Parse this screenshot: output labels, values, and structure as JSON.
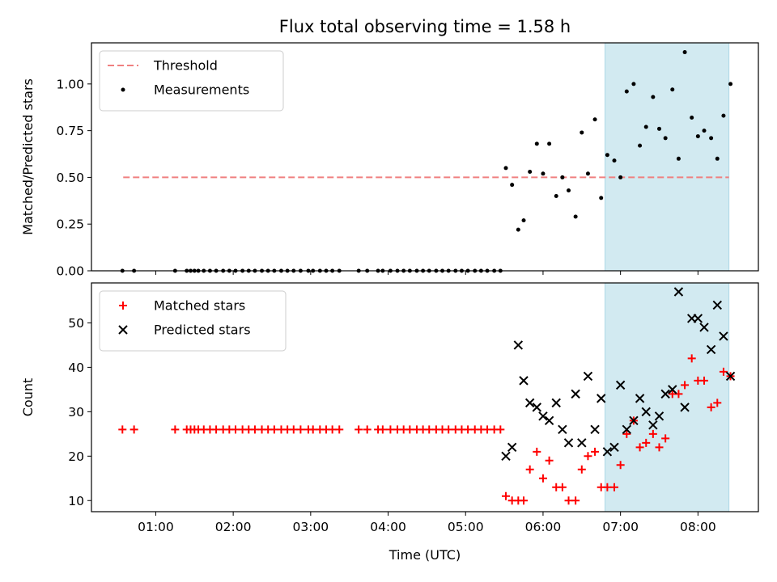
{
  "chart_data": {
    "title": "Flux total observing time = 1.58 h",
    "xlabel": "Time (UTC)",
    "x_ticks": [
      "01:00",
      "02:00",
      "03:00",
      "04:00",
      "05:00",
      "06:00",
      "07:00",
      "08:00"
    ],
    "x_tick_hours": [
      1,
      2,
      3,
      4,
      5,
      6,
      7,
      8
    ],
    "x_range_hours": [
      0.17,
      8.78
    ],
    "shaded_region_hours": [
      6.8,
      8.4
    ],
    "shade_color": "#add8e6",
    "panels": [
      {
        "type": "scatter",
        "ylabel": "Matched/Predicted stars",
        "ylim": [
          0,
          1.22
        ],
        "y_ticks": [
          0.0,
          0.25,
          0.5,
          0.75,
          1.0
        ],
        "y_tick_labels": [
          "0.00",
          "0.25",
          "0.50",
          "0.75",
          "1.00"
        ],
        "legend_position": "top-left",
        "threshold": {
          "name": "Threshold",
          "value": 0.5,
          "x_range_hours": [
            0.58,
            8.4
          ],
          "color": "#f08080"
        },
        "series": [
          {
            "name": "Measurements",
            "color": "#000000",
            "marker": "dot",
            "points": [
              [
                0.57,
                0
              ],
              [
                0.72,
                0
              ],
              [
                1.25,
                0
              ],
              [
                1.4,
                0
              ],
              [
                1.45,
                0
              ],
              [
                1.5,
                0
              ],
              [
                1.55,
                0
              ],
              [
                1.62,
                0
              ],
              [
                1.7,
                0
              ],
              [
                1.78,
                0
              ],
              [
                1.87,
                0
              ],
              [
                1.95,
                0
              ],
              [
                2.03,
                0
              ],
              [
                2.12,
                0
              ],
              [
                2.2,
                0
              ],
              [
                2.28,
                0
              ],
              [
                2.37,
                0
              ],
              [
                2.45,
                0
              ],
              [
                2.53,
                0
              ],
              [
                2.62,
                0
              ],
              [
                2.7,
                0
              ],
              [
                2.78,
                0
              ],
              [
                2.87,
                0
              ],
              [
                2.97,
                0
              ],
              [
                3.03,
                0
              ],
              [
                3.12,
                0
              ],
              [
                3.2,
                0
              ],
              [
                3.28,
                0
              ],
              [
                3.37,
                0
              ],
              [
                3.62,
                0
              ],
              [
                3.73,
                0
              ],
              [
                3.87,
                0
              ],
              [
                3.93,
                0
              ],
              [
                4.03,
                0
              ],
              [
                4.12,
                0
              ],
              [
                4.2,
                0
              ],
              [
                4.28,
                0
              ],
              [
                4.37,
                0
              ],
              [
                4.45,
                0
              ],
              [
                4.53,
                0
              ],
              [
                4.62,
                0
              ],
              [
                4.7,
                0
              ],
              [
                4.78,
                0
              ],
              [
                4.87,
                0
              ],
              [
                4.95,
                0
              ],
              [
                5.03,
                0
              ],
              [
                5.12,
                0
              ],
              [
                5.2,
                0
              ],
              [
                5.28,
                0
              ],
              [
                5.37,
                0
              ],
              [
                5.45,
                0
              ],
              [
                5.52,
                0.55
              ],
              [
                5.6,
                0.46
              ],
              [
                5.68,
                0.22
              ],
              [
                5.75,
                0.27
              ],
              [
                5.83,
                0.53
              ],
              [
                5.92,
                0.68
              ],
              [
                6.0,
                0.52
              ],
              [
                6.08,
                0.68
              ],
              [
                6.17,
                0.4
              ],
              [
                6.25,
                0.5
              ],
              [
                6.33,
                0.43
              ],
              [
                6.42,
                0.29
              ],
              [
                6.5,
                0.74
              ],
              [
                6.58,
                0.52
              ],
              [
                6.67,
                0.81
              ],
              [
                6.75,
                0.39
              ],
              [
                6.83,
                0.62
              ],
              [
                6.92,
                0.59
              ],
              [
                7.0,
                0.5
              ],
              [
                7.08,
                0.96
              ],
              [
                7.17,
                1.0
              ],
              [
                7.25,
                0.67
              ],
              [
                7.33,
                0.77
              ],
              [
                7.42,
                0.93
              ],
              [
                7.5,
                0.76
              ],
              [
                7.58,
                0.71
              ],
              [
                7.67,
                0.97
              ],
              [
                7.75,
                0.6
              ],
              [
                7.83,
                1.17
              ],
              [
                7.92,
                0.82
              ],
              [
                8.0,
                0.72
              ],
              [
                8.08,
                0.75
              ],
              [
                8.17,
                0.71
              ],
              [
                8.25,
                0.6
              ],
              [
                8.33,
                0.83
              ],
              [
                8.42,
                1.0
              ]
            ]
          }
        ]
      },
      {
        "type": "scatter",
        "ylabel": "Count",
        "ylim": [
          7.5,
          59
        ],
        "y_ticks": [
          10,
          20,
          30,
          40,
          50
        ],
        "y_tick_labels": [
          "10",
          "20",
          "30",
          "40",
          "50"
        ],
        "legend_position": "top-left",
        "series": [
          {
            "name": "Matched stars",
            "color": "#ff0000",
            "marker": "plus",
            "points": [
              [
                0.57,
                26
              ],
              [
                0.72,
                26
              ],
              [
                1.25,
                26
              ],
              [
                1.4,
                26
              ],
              [
                1.45,
                26
              ],
              [
                1.5,
                26
              ],
              [
                1.55,
                26
              ],
              [
                1.62,
                26
              ],
              [
                1.7,
                26
              ],
              [
                1.78,
                26
              ],
              [
                1.87,
                26
              ],
              [
                1.95,
                26
              ],
              [
                2.03,
                26
              ],
              [
                2.12,
                26
              ],
              [
                2.2,
                26
              ],
              [
                2.28,
                26
              ],
              [
                2.37,
                26
              ],
              [
                2.45,
                26
              ],
              [
                2.53,
                26
              ],
              [
                2.62,
                26
              ],
              [
                2.7,
                26
              ],
              [
                2.78,
                26
              ],
              [
                2.87,
                26
              ],
              [
                2.97,
                26
              ],
              [
                3.03,
                26
              ],
              [
                3.12,
                26
              ],
              [
                3.2,
                26
              ],
              [
                3.28,
                26
              ],
              [
                3.37,
                26
              ],
              [
                3.62,
                26
              ],
              [
                3.73,
                26
              ],
              [
                3.87,
                26
              ],
              [
                3.93,
                26
              ],
              [
                4.03,
                26
              ],
              [
                4.12,
                26
              ],
              [
                4.2,
                26
              ],
              [
                4.28,
                26
              ],
              [
                4.37,
                26
              ],
              [
                4.45,
                26
              ],
              [
                4.53,
                26
              ],
              [
                4.62,
                26
              ],
              [
                4.7,
                26
              ],
              [
                4.78,
                26
              ],
              [
                4.87,
                26
              ],
              [
                4.95,
                26
              ],
              [
                5.03,
                26
              ],
              [
                5.12,
                26
              ],
              [
                5.2,
                26
              ],
              [
                5.28,
                26
              ],
              [
                5.37,
                26
              ],
              [
                5.45,
                26
              ],
              [
                5.52,
                11
              ],
              [
                5.6,
                10
              ],
              [
                5.68,
                10
              ],
              [
                5.75,
                10
              ],
              [
                5.83,
                17
              ],
              [
                5.92,
                21
              ],
              [
                6.0,
                15
              ],
              [
                6.08,
                19
              ],
              [
                6.17,
                13
              ],
              [
                6.25,
                13
              ],
              [
                6.33,
                10
              ],
              [
                6.42,
                10
              ],
              [
                6.5,
                17
              ],
              [
                6.58,
                20
              ],
              [
                6.67,
                21
              ],
              [
                6.75,
                13
              ],
              [
                6.83,
                13
              ],
              [
                6.92,
                13
              ],
              [
                7.0,
                18
              ],
              [
                7.08,
                25
              ],
              [
                7.17,
                28
              ],
              [
                7.25,
                22
              ],
              [
                7.33,
                23
              ],
              [
                7.42,
                25
              ],
              [
                7.5,
                22
              ],
              [
                7.58,
                24
              ],
              [
                7.67,
                34
              ],
              [
                7.75,
                34
              ],
              [
                7.83,
                36
              ],
              [
                7.92,
                42
              ],
              [
                8.0,
                37
              ],
              [
                8.08,
                37
              ],
              [
                8.17,
                31
              ],
              [
                8.25,
                32
              ],
              [
                8.33,
                39
              ],
              [
                8.42,
                38
              ]
            ]
          },
          {
            "name": "Predicted stars",
            "color": "#000000",
            "marker": "x",
            "points": [
              [
                5.52,
                20
              ],
              [
                5.6,
                22
              ],
              [
                5.68,
                45
              ],
              [
                5.75,
                37
              ],
              [
                5.83,
                32
              ],
              [
                5.92,
                31
              ],
              [
                6.0,
                29
              ],
              [
                6.08,
                28
              ],
              [
                6.17,
                32
              ],
              [
                6.25,
                26
              ],
              [
                6.33,
                23
              ],
              [
                6.42,
                34
              ],
              [
                6.5,
                23
              ],
              [
                6.58,
                38
              ],
              [
                6.67,
                26
              ],
              [
                6.75,
                33
              ],
              [
                6.83,
                21
              ],
              [
                6.92,
                22
              ],
              [
                7.0,
                36
              ],
              [
                7.08,
                26
              ],
              [
                7.17,
                28
              ],
              [
                7.25,
                33
              ],
              [
                7.33,
                30
              ],
              [
                7.42,
                27
              ],
              [
                7.5,
                29
              ],
              [
                7.58,
                34
              ],
              [
                7.67,
                35
              ],
              [
                7.75,
                57
              ],
              [
                7.83,
                31
              ],
              [
                7.92,
                51
              ],
              [
                8.0,
                51
              ],
              [
                8.08,
                49
              ],
              [
                8.17,
                44
              ],
              [
                8.25,
                54
              ],
              [
                8.33,
                47
              ],
              [
                8.42,
                38
              ]
            ]
          }
        ]
      }
    ]
  }
}
